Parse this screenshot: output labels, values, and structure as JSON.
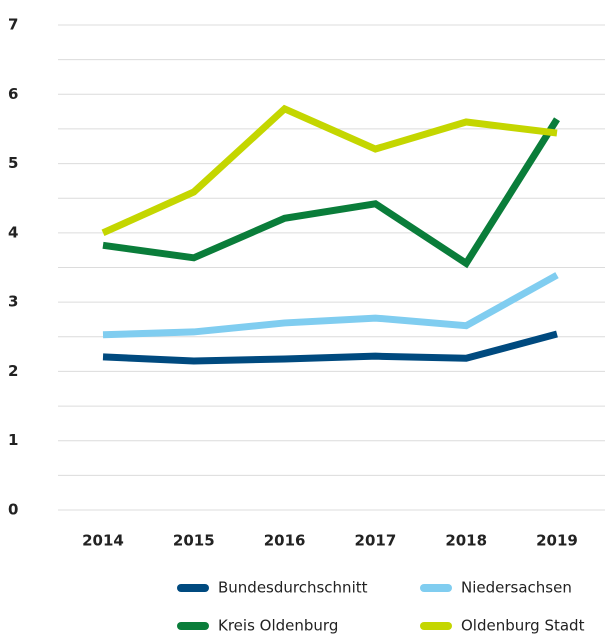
{
  "chart_data": {
    "type": "line",
    "categories": [
      "2014",
      "2015",
      "2016",
      "2017",
      "2018",
      "2019"
    ],
    "series": [
      {
        "name": "Bundesdurchschnitt",
        "color": "#004a7f",
        "values": [
          2.21,
          2.15,
          2.18,
          2.22,
          2.19,
          2.54
        ]
      },
      {
        "name": "Niedersachsen",
        "color": "#80cdf0",
        "values": [
          2.53,
          2.57,
          2.7,
          2.77,
          2.66,
          3.39
        ]
      },
      {
        "name": "Kreis Oldenburg",
        "color": "#0a7d3a",
        "values": [
          3.82,
          3.64,
          4.21,
          4.42,
          3.56,
          5.64
        ]
      },
      {
        "name": "Oldenburg Stadt",
        "color": "#c4d600",
        "values": [
          4.0,
          4.59,
          5.79,
          5.21,
          5.6,
          5.44
        ]
      }
    ],
    "ylim": [
      0,
      7
    ],
    "yticks": [
      0,
      1,
      2,
      3,
      4,
      5,
      6,
      7
    ],
    "minor_yticks": [
      0.5,
      1.5,
      2.5,
      3.5,
      4.5,
      5.5,
      6.5
    ],
    "grid": true
  }
}
